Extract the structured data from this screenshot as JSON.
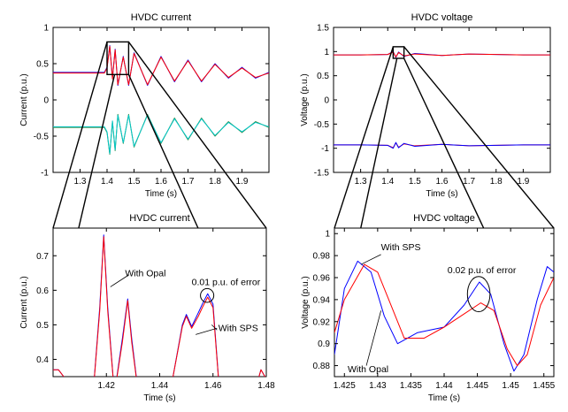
{
  "chart_data": [
    {
      "id": "tl",
      "type": "line",
      "title": "HVDC current",
      "xlabel": "Time (s)",
      "ylabel": "Current (p.u.)",
      "xlim": [
        1.2,
        2.0
      ],
      "ylim": [
        -1,
        1
      ],
      "xticks": [
        1.3,
        1.4,
        1.5,
        1.6,
        1.7,
        1.8,
        1.9
      ],
      "xtick_labels": [
        "1.3",
        "1.4",
        "1.5",
        "1.6",
        "1.7",
        "1.8",
        "1.9"
      ],
      "yticks": [
        -1,
        -0.5,
        0,
        0.5,
        1
      ],
      "ytick_labels": [
        "-1",
        "-0.5",
        "0",
        "0.5",
        "1"
      ],
      "zoom_box": {
        "x": [
          1.4,
          1.48
        ],
        "y": [
          0.35,
          0.8
        ]
      },
      "series": [
        {
          "color": "#0000ff",
          "x": [
            1.2,
            1.25,
            1.3,
            1.35,
            1.39,
            1.4,
            1.41,
            1.42,
            1.43,
            1.44,
            1.46,
            1.48,
            1.5,
            1.55,
            1.6,
            1.65,
            1.7,
            1.75,
            1.8,
            1.85,
            1.9,
            1.95,
            2.0
          ],
          "y": [
            0.38,
            0.38,
            0.38,
            0.38,
            0.38,
            0.45,
            0.75,
            0.3,
            0.7,
            0.2,
            0.6,
            0.2,
            0.65,
            0.2,
            0.6,
            0.25,
            0.55,
            0.25,
            0.5,
            0.3,
            0.45,
            0.3,
            0.38
          ]
        },
        {
          "color": "#ff0000",
          "x": [
            1.2,
            1.25,
            1.3,
            1.35,
            1.39,
            1.4,
            1.41,
            1.42,
            1.43,
            1.44,
            1.46,
            1.48,
            1.5,
            1.55,
            1.6,
            1.65,
            1.7,
            1.75,
            1.8,
            1.85,
            1.9,
            1.95,
            2.0
          ],
          "y": [
            0.37,
            0.37,
            0.37,
            0.37,
            0.37,
            0.44,
            0.74,
            0.29,
            0.69,
            0.21,
            0.59,
            0.21,
            0.64,
            0.21,
            0.59,
            0.26,
            0.54,
            0.26,
            0.49,
            0.31,
            0.44,
            0.31,
            0.37
          ]
        },
        {
          "color": "#2e7d32",
          "x": [
            1.2,
            1.25,
            1.3,
            1.35,
            1.39,
            1.4,
            1.41,
            1.42,
            1.43,
            1.44,
            1.46,
            1.48,
            1.5,
            1.55,
            1.6,
            1.65,
            1.7,
            1.75,
            1.8,
            1.85,
            1.9,
            1.95,
            2.0
          ],
          "y": [
            -0.38,
            -0.38,
            -0.38,
            -0.38,
            -0.38,
            -0.45,
            -0.75,
            -0.3,
            -0.7,
            -0.2,
            -0.6,
            -0.2,
            -0.65,
            -0.2,
            -0.6,
            -0.25,
            -0.55,
            -0.25,
            -0.5,
            -0.3,
            -0.45,
            -0.3,
            -0.38
          ]
        },
        {
          "color": "#00c8c8",
          "x": [
            1.2,
            1.25,
            1.3,
            1.35,
            1.39,
            1.4,
            1.41,
            1.42,
            1.43,
            1.44,
            1.46,
            1.48,
            1.5,
            1.55,
            1.6,
            1.65,
            1.7,
            1.75,
            1.8,
            1.85,
            1.9,
            1.95,
            2.0
          ],
          "y": [
            -0.37,
            -0.37,
            -0.37,
            -0.37,
            -0.37,
            -0.44,
            -0.74,
            -0.29,
            -0.69,
            -0.21,
            -0.59,
            -0.21,
            -0.64,
            -0.21,
            -0.59,
            -0.26,
            -0.54,
            -0.26,
            -0.49,
            -0.31,
            -0.44,
            -0.31,
            -0.37
          ]
        }
      ]
    },
    {
      "id": "tr",
      "type": "line",
      "title": "HVDC voltage",
      "xlabel": "Time (s)",
      "ylabel": "Voltage (p.u.)",
      "xlim": [
        1.2,
        2.0
      ],
      "ylim": [
        -1.5,
        1.5
      ],
      "xticks": [
        1.3,
        1.4,
        1.5,
        1.6,
        1.7,
        1.8,
        1.9
      ],
      "xtick_labels": [
        "1.3",
        "1.4",
        "1.5",
        "1.6",
        "1.7",
        "1.8",
        "1.9"
      ],
      "yticks": [
        -1.5,
        -1,
        -0.5,
        0,
        0.5,
        1,
        1.5
      ],
      "ytick_labels": [
        "-1.5",
        "-1",
        "-0.5",
        "0",
        "0.5",
        "1",
        "1.5"
      ],
      "zoom_box": {
        "x": [
          1.42,
          1.46
        ],
        "y": [
          0.86,
          1.1
        ]
      },
      "series": [
        {
          "color": "#0000ff",
          "x": [
            1.2,
            1.3,
            1.4,
            1.42,
            1.43,
            1.44,
            1.46,
            1.5,
            1.6,
            1.7,
            1.8,
            1.9,
            2.0
          ],
          "y": [
            0.93,
            0.93,
            0.94,
            1.0,
            0.88,
            0.99,
            0.9,
            0.96,
            0.92,
            0.95,
            0.94,
            0.93,
            0.93
          ]
        },
        {
          "color": "#ff0000",
          "x": [
            1.2,
            1.3,
            1.4,
            1.42,
            1.43,
            1.44,
            1.46,
            1.5,
            1.6,
            1.7,
            1.8,
            1.9,
            2.0
          ],
          "y": [
            0.93,
            0.93,
            0.94,
            0.99,
            0.89,
            0.98,
            0.91,
            0.95,
            0.92,
            0.95,
            0.94,
            0.93,
            0.93
          ]
        },
        {
          "color": "#ff0000",
          "x": [
            1.2,
            1.3,
            1.4,
            1.42,
            1.43,
            1.44,
            1.46,
            1.5,
            1.6,
            1.7,
            1.8,
            1.9,
            2.0
          ],
          "y": [
            -0.93,
            -0.93,
            -0.94,
            -0.99,
            -0.89,
            -0.98,
            -0.91,
            -0.95,
            -0.92,
            -0.95,
            -0.94,
            -0.93,
            -0.93
          ]
        },
        {
          "color": "#0000ff",
          "x": [
            1.2,
            1.3,
            1.4,
            1.42,
            1.43,
            1.44,
            1.46,
            1.5,
            1.6,
            1.7,
            1.8,
            1.9,
            2.0
          ],
          "y": [
            -0.93,
            -0.93,
            -0.94,
            -1.0,
            -0.88,
            -0.99,
            -0.9,
            -0.96,
            -0.92,
            -0.95,
            -0.94,
            -0.93,
            -0.93
          ]
        }
      ]
    },
    {
      "id": "bl",
      "type": "line",
      "title": "HVDC current",
      "xlabel": "Time (s)",
      "ylabel": "Current (p.u.)",
      "xlim": [
        1.4,
        1.48
      ],
      "ylim": [
        0.35,
        0.78
      ],
      "xticks": [
        1.42,
        1.44,
        1.46,
        1.48
      ],
      "xtick_labels": [
        "1.42",
        "1.44",
        "1.46",
        "1.48"
      ],
      "yticks": [
        0.4,
        0.5,
        0.6,
        0.7
      ],
      "ytick_labels": [
        "0.4",
        "0.5",
        "0.6",
        "0.7"
      ],
      "annotations": [
        {
          "text": "With Opal",
          "x": 1.427,
          "y": 0.64
        },
        {
          "text": "0.01 p.u. of error",
          "x": 1.452,
          "y": 0.615
        },
        {
          "text": "With SPS",
          "x": 1.462,
          "y": 0.482
        }
      ],
      "ellipse": {
        "cx": 1.4578,
        "cy": 0.585,
        "rx": 0.0025,
        "ry": 0.02
      },
      "series": [
        {
          "color": "#0000ff",
          "x": [
            1.4,
            1.402,
            1.404,
            1.406,
            1.41,
            1.415,
            1.4175,
            1.419,
            1.4205,
            1.423,
            1.426,
            1.428,
            1.4295,
            1.432,
            1.437,
            1.445,
            1.4485,
            1.45,
            1.452,
            1.4545,
            1.456,
            1.458,
            1.46,
            1.4625,
            1.47,
            1.4765,
            1.478,
            1.4795,
            1.48
          ],
          "y": [
            0.37,
            0.37,
            0.35,
            0.3,
            0.28,
            0.3,
            0.55,
            0.76,
            0.55,
            0.3,
            0.46,
            0.575,
            0.46,
            0.3,
            0.28,
            0.35,
            0.5,
            0.53,
            0.495,
            0.535,
            0.56,
            0.59,
            0.56,
            0.3,
            0.28,
            0.33,
            0.37,
            0.35,
            0.3
          ]
        },
        {
          "color": "#ff0000",
          "x": [
            1.4,
            1.402,
            1.404,
            1.406,
            1.41,
            1.415,
            1.4175,
            1.419,
            1.4205,
            1.423,
            1.426,
            1.428,
            1.4295,
            1.432,
            1.437,
            1.445,
            1.4485,
            1.45,
            1.452,
            1.4545,
            1.456,
            1.458,
            1.46,
            1.4625,
            1.47,
            1.4765,
            1.478,
            1.4795,
            1.48
          ],
          "y": [
            0.37,
            0.37,
            0.35,
            0.3,
            0.28,
            0.3,
            0.54,
            0.755,
            0.54,
            0.3,
            0.45,
            0.57,
            0.45,
            0.3,
            0.28,
            0.35,
            0.495,
            0.525,
            0.49,
            0.525,
            0.55,
            0.58,
            0.55,
            0.3,
            0.28,
            0.33,
            0.37,
            0.35,
            0.3
          ]
        }
      ]
    },
    {
      "id": "br",
      "type": "line",
      "title": "HVDC voltage",
      "xlabel": "Time (s)",
      "ylabel": "Voltage (p.u.)",
      "xlim": [
        1.4235,
        1.4565
      ],
      "ylim": [
        0.87,
        1.005
      ],
      "xticks": [
        1.425,
        1.43,
        1.435,
        1.44,
        1.445,
        1.45,
        1.455
      ],
      "xtick_labels": [
        "1.425",
        "1.43",
        "1.435",
        "1.44",
        "1.445",
        "1.45",
        "1.455"
      ],
      "yticks": [
        0.88,
        0.9,
        0.92,
        0.94,
        0.96,
        0.98,
        1
      ],
      "ytick_labels": [
        "0.88",
        "0.9",
        "0.92",
        "0.94",
        "0.96",
        "0.98",
        "1"
      ],
      "annotations": [
        {
          "text": "With SPS",
          "x": 1.4305,
          "y": 0.985
        },
        {
          "text": "0.02 p.u. of error",
          "x": 1.4405,
          "y": 0.964
        },
        {
          "text": "With Opal",
          "x": 1.4255,
          "y": 0.874
        }
      ],
      "ellipse": {
        "cx": 1.4452,
        "cy": 0.945,
        "rx": 0.0017,
        "ry": 0.016
      },
      "series": [
        {
          "color": "#0000ff",
          "x": [
            1.4235,
            1.425,
            1.427,
            1.429,
            1.431,
            1.433,
            1.436,
            1.44,
            1.443,
            1.4453,
            1.447,
            1.449,
            1.4505,
            1.452,
            1.454,
            1.4555,
            1.4565
          ],
          "y": [
            0.89,
            0.95,
            0.975,
            0.965,
            0.925,
            0.9,
            0.91,
            0.915,
            0.935,
            0.956,
            0.945,
            0.9,
            0.875,
            0.89,
            0.94,
            0.97,
            0.965
          ]
        },
        {
          "color": "#ff0000",
          "x": [
            1.4235,
            1.425,
            1.428,
            1.43,
            1.432,
            1.434,
            1.437,
            1.44,
            1.443,
            1.4455,
            1.4475,
            1.4495,
            1.451,
            1.4525,
            1.4545,
            1.4565
          ],
          "y": [
            0.91,
            0.94,
            0.972,
            0.965,
            0.935,
            0.905,
            0.905,
            0.915,
            0.927,
            0.937,
            0.93,
            0.895,
            0.88,
            0.89,
            0.935,
            0.96
          ]
        }
      ]
    }
  ]
}
